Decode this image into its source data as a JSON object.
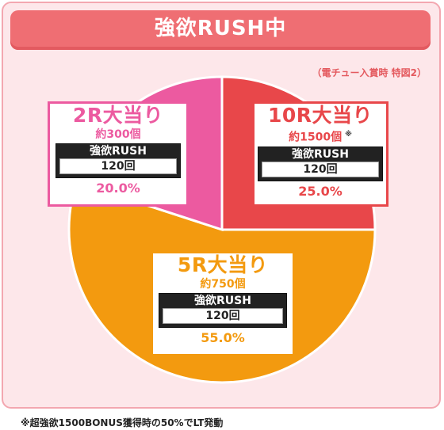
{
  "header": {
    "title": "強欲RUSH中"
  },
  "note": "（電チュー入賞時 特図2）",
  "footnote": "※超強欲1500BONUS獲得時の50%でLT発動",
  "chart_data": {
    "type": "pie",
    "slices": [
      {
        "label": "10R大当り",
        "count": "約1500個",
        "count_mark": "※",
        "rush_name": "強欲RUSH",
        "rush_value": "120回",
        "percent_text": "25.0%",
        "value": 25.0,
        "color": "#e8474a",
        "text_color": "#e8474a"
      },
      {
        "label": "5R大当り",
        "count": "約750個",
        "count_mark": "",
        "rush_name": "強欲RUSH",
        "rush_value": "120回",
        "percent_text": "55.0%",
        "value": 55.0,
        "color": "#f39a0f",
        "text_color": "#f39a0f"
      },
      {
        "label": "2R大当り",
        "count": "約300個",
        "count_mark": "",
        "rush_name": "強欲RUSH",
        "rush_value": "120回",
        "percent_text": "20.0%",
        "value": 20.0,
        "color": "#ec5aa0",
        "text_color": "#ec5aa0"
      }
    ]
  }
}
